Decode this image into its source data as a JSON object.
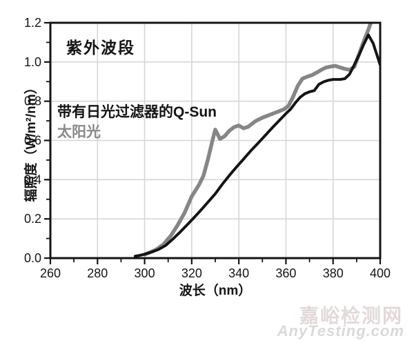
{
  "title": "紫外波段",
  "legend": {
    "qsun": "带有日光过滤器的Q-Sun",
    "sunlight": "太阳光"
  },
  "watermark": {
    "cn": "嘉峪检测网",
    "en": "AnyTesting.com"
  },
  "chart_data": {
    "type": "line",
    "title": "紫外波段",
    "xlabel": "波长（nm）",
    "ylabel": "辐照度（W/m²/nm）",
    "xlim": [
      260,
      400
    ],
    "ylim": [
      0,
      1.2
    ],
    "grid": true,
    "colors": {
      "frame": "#141414",
      "grid": "#d6d6d6",
      "tick": "#141414",
      "tick_label": "#141414"
    },
    "x_axis": {
      "tick_values": [
        260,
        280,
        300,
        320,
        340,
        360,
        380,
        400
      ],
      "tick_labels": [
        "260",
        "280",
        "300",
        "320",
        "340",
        "360",
        "380",
        "400"
      ],
      "minor_ticks": [
        270,
        290,
        310,
        330,
        350,
        370,
        390
      ],
      "gridlines": [
        280,
        300,
        320,
        340,
        360,
        380
      ]
    },
    "y_axis": {
      "tick_values": [
        0,
        0.2,
        0.4,
        0.6,
        0.8,
        1.0,
        1.2
      ],
      "tick_labels": [
        "0.0",
        "0.2",
        "0.4",
        "0.6",
        "0.8",
        "1.0",
        "1.2"
      ],
      "minor_ticks": [
        0.1,
        0.3,
        0.5,
        0.7,
        0.9,
        1.1
      ],
      "gridlines": [
        0.2,
        0.4,
        0.6,
        0.8,
        1.0
      ]
    },
    "series": [
      {
        "id": "curve-sunlight",
        "name": "太阳光",
        "color": "#868686",
        "width": 5.5,
        "points": [
          [
            300,
            0.018
          ],
          [
            302,
            0.028
          ],
          [
            305,
            0.044
          ],
          [
            308,
            0.07
          ],
          [
            311,
            0.112
          ],
          [
            314,
            0.168
          ],
          [
            317,
            0.232
          ],
          [
            320,
            0.315
          ],
          [
            323,
            0.372
          ],
          [
            325,
            0.42
          ],
          [
            327,
            0.51
          ],
          [
            329,
            0.61
          ],
          [
            330,
            0.655
          ],
          [
            332,
            0.608
          ],
          [
            334,
            0.622
          ],
          [
            336,
            0.65
          ],
          [
            338,
            0.668
          ],
          [
            340,
            0.676
          ],
          [
            342,
            0.662
          ],
          [
            344,
            0.67
          ],
          [
            347,
            0.698
          ],
          [
            350,
            0.716
          ],
          [
            353,
            0.73
          ],
          [
            356,
            0.744
          ],
          [
            359,
            0.758
          ],
          [
            361,
            0.775
          ],
          [
            363,
            0.822
          ],
          [
            365,
            0.878
          ],
          [
            367,
            0.915
          ],
          [
            369,
            0.925
          ],
          [
            371,
            0.933
          ],
          [
            373,
            0.946
          ],
          [
            375,
            0.96
          ],
          [
            377,
            0.972
          ],
          [
            379,
            0.977
          ],
          [
            381,
            0.98
          ],
          [
            383,
            0.972
          ],
          [
            385,
            0.965
          ],
          [
            387,
            0.96
          ],
          [
            389,
            0.975
          ],
          [
            391,
            1.04
          ],
          [
            393,
            1.105
          ],
          [
            395,
            1.165
          ],
          [
            396.5,
            1.215
          ]
        ]
      },
      {
        "id": "curve-qsun-daylight-filter",
        "name": "带有日光过滤器的Q-Sun",
        "color": "#141414",
        "width": 4,
        "points": [
          [
            296,
            0.01
          ],
          [
            298,
            0.014
          ],
          [
            300,
            0.02
          ],
          [
            303,
            0.031
          ],
          [
            306,
            0.045
          ],
          [
            309,
            0.065
          ],
          [
            312,
            0.097
          ],
          [
            315,
            0.132
          ],
          [
            318,
            0.169
          ],
          [
            321,
            0.207
          ],
          [
            324,
            0.246
          ],
          [
            327,
            0.287
          ],
          [
            330,
            0.328
          ],
          [
            333,
            0.377
          ],
          [
            336,
            0.422
          ],
          [
            339,
            0.464
          ],
          [
            342,
            0.505
          ],
          [
            345,
            0.546
          ],
          [
            348,
            0.584
          ],
          [
            351,
            0.623
          ],
          [
            354,
            0.662
          ],
          [
            357,
            0.7
          ],
          [
            360,
            0.737
          ],
          [
            362,
            0.76
          ],
          [
            364,
            0.792
          ],
          [
            366,
            0.82
          ],
          [
            368,
            0.838
          ],
          [
            370,
            0.848
          ],
          [
            372,
            0.854
          ],
          [
            374,
            0.886
          ],
          [
            376,
            0.899
          ],
          [
            378,
            0.907
          ],
          [
            380,
            0.911
          ],
          [
            383,
            0.911
          ],
          [
            385,
            0.915
          ],
          [
            387,
            0.938
          ],
          [
            389,
            0.985
          ],
          [
            391,
            1.035
          ],
          [
            393,
            1.09
          ],
          [
            395,
            1.138
          ],
          [
            397,
            1.095
          ],
          [
            400,
            0.985
          ]
        ]
      }
    ]
  }
}
